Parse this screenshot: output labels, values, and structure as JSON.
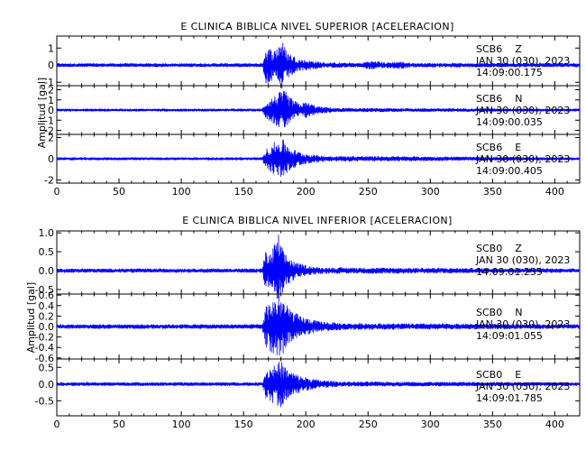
{
  "chart_data": [
    {
      "type": "line",
      "title": "E CLINICA BIBLICA NIVEL SUPERIOR [ACELERACION]",
      "ylabel": "Amplitud [gal]",
      "xlabel": "",
      "xlim": [
        0,
        420
      ],
      "x_ticks": [
        "0",
        "50",
        "100",
        "150",
        "200",
        "250",
        "300",
        "350",
        "400"
      ],
      "traces": [
        {
          "station": "SCB6",
          "component": "Z",
          "date": "JAN 30 (030), 2023",
          "start_time": "14:09:00.175",
          "ylim": [
            -1.2,
            1.7
          ],
          "y_ticks": [
            "1",
            "0",
            "-1"
          ],
          "noise": 0.1,
          "envelope": [
            [
              0,
              0.1
            ],
            [
              165,
              0.1
            ],
            [
              168,
              1.1
            ],
            [
              175,
              0.9
            ],
            [
              180,
              1.6
            ],
            [
              185,
              0.8
            ],
            [
              195,
              0.35
            ],
            [
              215,
              0.15
            ],
            [
              245,
              0.12
            ],
            [
              250,
              0.25
            ],
            [
              258,
              0.22
            ],
            [
              265,
              0.15
            ],
            [
              275,
              0.22
            ],
            [
              285,
              0.12
            ],
            [
              420,
              0.1
            ]
          ]
        },
        {
          "station": "SCB6",
          "component": "N",
          "date": "JAN 30 (030), 2023",
          "start_time": "14:09:00.035",
          "ylim": [
            -2.4,
            2.4
          ],
          "y_ticks": [
            "2",
            "1",
            "0",
            "-1",
            "-2"
          ],
          "noise": 0.12,
          "envelope": [
            [
              0,
              0.12
            ],
            [
              165,
              0.12
            ],
            [
              168,
              0.8
            ],
            [
              178,
              1.7
            ],
            [
              183,
              1.9
            ],
            [
              188,
              1.2
            ],
            [
              195,
              0.6
            ],
            [
              200,
              0.8
            ],
            [
              210,
              0.35
            ],
            [
              225,
              0.18
            ],
            [
              420,
              0.12
            ]
          ]
        },
        {
          "station": "SCB6",
          "component": "E",
          "date": "JAN 30 (030), 2023",
          "start_time": "14:09:00.405",
          "ylim": [
            -2.3,
            2.3
          ],
          "y_ticks": [
            "2",
            "0",
            "-2"
          ],
          "noise": 0.12,
          "envelope": [
            [
              0,
              0.12
            ],
            [
              165,
              0.12
            ],
            [
              168,
              0.9
            ],
            [
              175,
              1.6
            ],
            [
              182,
              1.8
            ],
            [
              188,
              1.0
            ],
            [
              198,
              0.5
            ],
            [
              215,
              0.25
            ],
            [
              420,
              0.12
            ]
          ]
        }
      ]
    },
    {
      "type": "line",
      "title": "E CLINICA BIBLICA NIVEL INFERIOR [ACELERACION]",
      "ylabel": "Amplitud [gal]",
      "xlabel": "",
      "xlim": [
        0,
        420
      ],
      "x_ticks": [
        "0",
        "50",
        "100",
        "150",
        "200",
        "250",
        "300",
        "350",
        "400"
      ],
      "traces": [
        {
          "station": "SCB0",
          "component": "Z",
          "date": "JAN 30 (030), 2023",
          "start_time": "14:09:01.255",
          "ylim": [
            -0.62,
            1.05
          ],
          "y_ticks": [
            "1.0",
            "0.5",
            "0.0",
            "-0.5"
          ],
          "noise": 0.05,
          "envelope": [
            [
              0,
              0.05
            ],
            [
              165,
              0.05
            ],
            [
              167,
              0.5
            ],
            [
              172,
              0.45
            ],
            [
              178,
              1.0
            ],
            [
              182,
              0.5
            ],
            [
              192,
              0.2
            ],
            [
              210,
              0.08
            ],
            [
              420,
              0.05
            ]
          ]
        },
        {
          "station": "SCB0",
          "component": "N",
          "date": "JAN 30 (030), 2023",
          "start_time": "14:09:01.055",
          "ylim": [
            -0.62,
            0.62
          ],
          "y_ticks": [
            "0.6",
            "0.4",
            "0.2",
            "0.0",
            "-0.2",
            "-0.4",
            "-0.6"
          ],
          "noise": 0.04,
          "envelope": [
            [
              0,
              0.04
            ],
            [
              165,
              0.04
            ],
            [
              168,
              0.4
            ],
            [
              175,
              0.55
            ],
            [
              180,
              0.6
            ],
            [
              185,
              0.4
            ],
            [
              195,
              0.2
            ],
            [
              210,
              0.1
            ],
            [
              230,
              0.06
            ],
            [
              420,
              0.04
            ]
          ]
        },
        {
          "station": "SCB0",
          "component": "E",
          "date": "JAN 30 (030), 2023",
          "start_time": "14:09:01.785",
          "ylim": [
            -0.95,
            0.75
          ],
          "y_ticks": [
            "0.5",
            "0.0",
            "-0.5"
          ],
          "noise": 0.05,
          "envelope": [
            [
              0,
              0.05
            ],
            [
              165,
              0.05
            ],
            [
              168,
              0.45
            ],
            [
              175,
              0.6
            ],
            [
              180,
              0.7
            ],
            [
              185,
              0.45
            ],
            [
              195,
              0.25
            ],
            [
              210,
              0.12
            ],
            [
              230,
              0.07
            ],
            [
              420,
              0.05
            ]
          ]
        }
      ]
    }
  ],
  "colors": {
    "trace": "#0000ff",
    "axis": "#000000",
    "background": "#ffffff"
  }
}
